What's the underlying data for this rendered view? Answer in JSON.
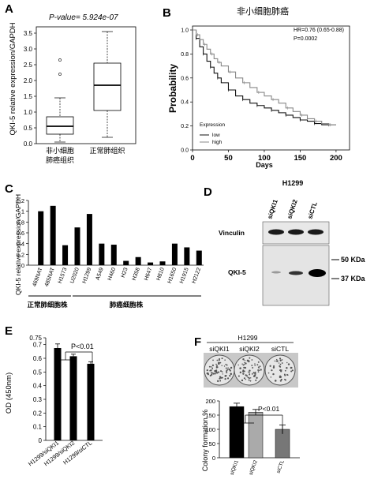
{
  "figure": {
    "panels": {
      "A": {
        "label": "A",
        "pvalue_text": "P-value= 5.924e-07",
        "ylabel": "QKI-5 relative expression/GAPDH",
        "yticks": [
          "0.0",
          "0.5",
          "1.0",
          "1.5",
          "2.0",
          "2.5",
          "3.0",
          "3.5"
        ],
        "group1_line1": "非小细胞",
        "group1_line2": "肺癌组织",
        "group2_label": "正常肺组织"
      },
      "B": {
        "label": "B",
        "title": "非小细胞肺癌",
        "hr_text": "HR=0.76 (0.65-0.88)",
        "p_text": "P=0.0002",
        "ylabel": "Probability",
        "xlabel": "Days",
        "xticks": [
          "0",
          "50",
          "100",
          "150",
          "200"
        ],
        "yticks": [
          "0.0",
          "0.2",
          "0.4",
          "0.6",
          "0.8",
          "1.0"
        ],
        "legend_title": "Expression",
        "legend_low": "low",
        "legend_high": "high"
      },
      "C": {
        "label": "C",
        "ylabel": "QKI-5 relative expression/GAPDH",
        "yticks": [
          "0",
          "0.2",
          "0.4",
          "0.6",
          "0.8",
          "1",
          "1.2"
        ],
        "group_normal": "正常肺细胞株",
        "group_cancer": "肺癌细胞株"
      },
      "D": {
        "label": "D",
        "cell_line": "H1299",
        "lanes": [
          "siQKI1",
          "siQKI2",
          "siCTL"
        ],
        "vinculin_label": "Vinculin",
        "qki_label": "QKI-5",
        "marker_50": "50 KDa",
        "marker_37": "37 KDa"
      },
      "E": {
        "label": "E",
        "ylabel": "OD (450nm)",
        "yticks": [
          "0",
          "0.1",
          "0.2",
          "0.3",
          "0.4",
          "0.5",
          "0.6",
          "0.7",
          "0.75"
        ],
        "sig_text": "P<0.01"
      },
      "F": {
        "label": "F",
        "cell_line": "H1299",
        "lanes": [
          "siQKI1",
          "siQKI2",
          "siCTL"
        ],
        "ylabel": "Colony formation %",
        "yticks": [
          "0",
          "50",
          "100",
          "150",
          "200"
        ],
        "sig_text": "P<0.01"
      }
    }
  },
  "chart_data": [
    {
      "panel": "A",
      "type": "box",
      "categories": [
        "非小细胞肺癌组织",
        "正常肺组织"
      ],
      "boxes": [
        {
          "q1": 0.3,
          "median": 0.55,
          "q3": 0.85,
          "whisker_low": 0.05,
          "whisker_high": 1.45,
          "outliers": [
            2.2,
            2.65
          ]
        },
        {
          "q1": 1.05,
          "median": 1.85,
          "q3": 2.55,
          "whisker_low": 0.2,
          "whisker_high": 3.55,
          "outliers": []
        }
      ],
      "ylim": [
        0,
        3.7
      ]
    },
    {
      "panel": "B",
      "type": "line",
      "xlim": [
        0,
        210
      ],
      "ylim": [
        0,
        1.0
      ],
      "series": [
        {
          "name": "low",
          "color": "#111111",
          "x": [
            0,
            5,
            10,
            15,
            20,
            25,
            30,
            35,
            40,
            50,
            60,
            70,
            80,
            90,
            100,
            110,
            120,
            130,
            140,
            150,
            160,
            170,
            180,
            190,
            200
          ],
          "y": [
            1.0,
            0.93,
            0.86,
            0.8,
            0.74,
            0.69,
            0.64,
            0.6,
            0.56,
            0.5,
            0.45,
            0.42,
            0.39,
            0.37,
            0.35,
            0.33,
            0.31,
            0.29,
            0.27,
            0.25,
            0.24,
            0.22,
            0.21,
            0.21,
            0.21
          ]
        },
        {
          "name": "high",
          "color": "#888888",
          "x": [
            0,
            5,
            10,
            15,
            20,
            25,
            30,
            35,
            40,
            50,
            60,
            70,
            80,
            90,
            100,
            110,
            120,
            130,
            140,
            150,
            160,
            170,
            180,
            190,
            200
          ],
          "y": [
            1.0,
            0.96,
            0.92,
            0.88,
            0.84,
            0.8,
            0.76,
            0.73,
            0.7,
            0.65,
            0.6,
            0.56,
            0.52,
            0.48,
            0.45,
            0.42,
            0.39,
            0.35,
            0.32,
            0.29,
            0.26,
            0.24,
            0.22,
            0.21,
            0.21
          ]
        }
      ]
    },
    {
      "panel": "C",
      "type": "bar",
      "categories": [
        "469NAT",
        "485NAT",
        "H1573",
        "U2020",
        "H1299",
        "A549",
        "H460",
        "H23",
        "H358",
        "H647",
        "H810",
        "H1650",
        "H1915",
        "H2122"
      ],
      "values": [
        1.0,
        1.1,
        0.37,
        0.7,
        0.95,
        0.4,
        0.38,
        0.08,
        0.15,
        0.05,
        0.07,
        0.4,
        0.33,
        0.27
      ],
      "ylim": [
        0,
        1.2
      ],
      "color": "#000000"
    },
    {
      "panel": "E",
      "type": "bar",
      "categories": [
        "H1299/siQKI1",
        "H1299/siQKI2",
        "H1299/siCTL"
      ],
      "values": [
        0.675,
        0.615,
        0.56
      ],
      "errors": [
        0.03,
        0.015,
        0.015
      ],
      "ylim": [
        0,
        0.75
      ],
      "color": "#000000"
    },
    {
      "panel": "F",
      "type": "bar",
      "categories": [
        "siQKI1",
        "siQKI2",
        "siCTL"
      ],
      "values": [
        180,
        160,
        100
      ],
      "errors": [
        12,
        10,
        15
      ],
      "ylim": [
        0,
        200
      ],
      "colors": [
        "#000000",
        "#aaaaaa",
        "#777777"
      ]
    }
  ]
}
